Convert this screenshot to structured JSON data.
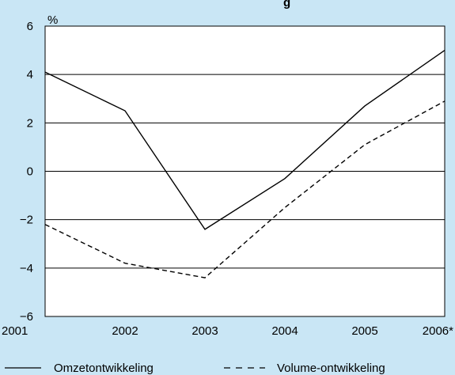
{
  "chart_data": {
    "type": "line",
    "title_fragment": "g",
    "unit_label": "%",
    "categories": [
      "2001",
      "2002",
      "2003",
      "2004",
      "2005",
      "2006*"
    ],
    "ylim": [
      -6,
      6
    ],
    "yticks": [
      "6",
      "4",
      "2",
      "0",
      "−2",
      "−4",
      "−6"
    ],
    "ytick_values": [
      6,
      4,
      2,
      0,
      -2,
      -4,
      -6
    ],
    "grid": true,
    "legend_position": "bottom",
    "colors": {
      "background": "#c9e6f5",
      "plot_background": "#ffffff",
      "line": "#000000"
    },
    "series": [
      {
        "name": "Omzetontwikkeling",
        "style": "solid",
        "values": [
          4.1,
          2.5,
          -2.4,
          -0.3,
          2.7,
          5.0
        ]
      },
      {
        "name": "Volume-ontwikkeling",
        "style": "dashed",
        "values": [
          -2.2,
          -3.8,
          -4.4,
          -1.5,
          1.1,
          2.9
        ]
      }
    ]
  }
}
